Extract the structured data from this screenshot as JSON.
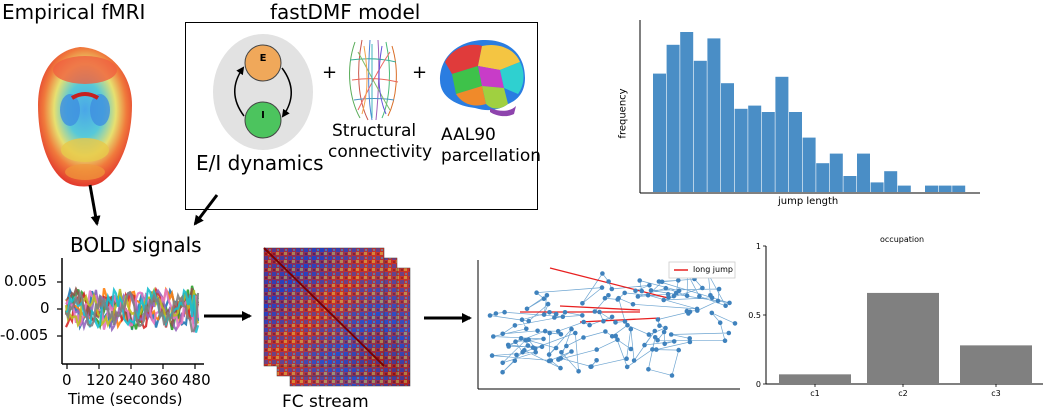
{
  "titles": {
    "empirical": "Empirical fMRI",
    "model": "fastDMF model",
    "bold": "BOLD signals",
    "fc_stream": "FC stream"
  },
  "model": {
    "plus": "+",
    "ei_label": "E/I dynamics",
    "node_e": "E",
    "node_i": "I",
    "sc_label_1": "Structural",
    "sc_label_2": "connectivity",
    "aal_label_1": "AAL90",
    "aal_label_2": "parcellation"
  },
  "colors": {
    "excitatory": "#f0a85a",
    "inhibitory": "#4cc45e",
    "bar_blue": "#4a8ec6",
    "occupation_gray": "#808080",
    "long_jump": "#e82020"
  },
  "bold_axis": {
    "yticks": [
      "0.005",
      "0",
      "-0.005"
    ],
    "xticks": [
      "0",
      "120",
      "240",
      "360",
      "480"
    ],
    "xlabel": "Time (seconds)"
  },
  "histogram": {
    "xlabel": "jump length",
    "ylabel": "frequency",
    "heights": [
      0.74,
      0.92,
      1.0,
      0.82,
      0.96,
      0.68,
      0.52,
      0.54,
      0.5,
      0.72,
      0.5,
      0.34,
      0.18,
      0.24,
      0.1,
      0.24,
      0.06,
      0.13,
      0.04,
      0.0,
      0.04,
      0.04,
      0.04
    ]
  },
  "trajectory": {
    "legend": "long jump"
  },
  "chart_data": {
    "type": "bar",
    "title": "occupation",
    "categories": [
      "c1",
      "c2",
      "c3"
    ],
    "values": [
      0.07,
      0.66,
      0.28
    ],
    "ylim": [
      0,
      1
    ],
    "yticks": [
      "0",
      "0.5",
      "1"
    ],
    "xlabel": "",
    "ylabel": "",
    "grid": false
  }
}
